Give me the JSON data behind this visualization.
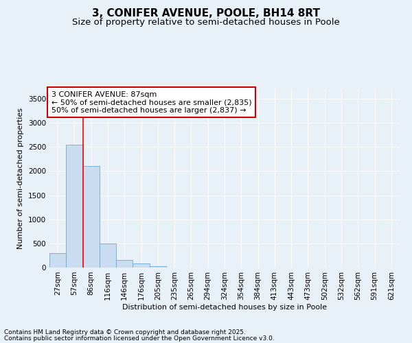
{
  "title": "3, CONIFER AVENUE, POOLE, BH14 8RT",
  "subtitle": "Size of property relative to semi-detached houses in Poole",
  "xlabel": "Distribution of semi-detached houses by size in Poole",
  "ylabel": "Number of semi-detached properties",
  "categories": [
    "27sqm",
    "57sqm",
    "86sqm",
    "116sqm",
    "146sqm",
    "176sqm",
    "205sqm",
    "235sqm",
    "265sqm",
    "294sqm",
    "324sqm",
    "354sqm",
    "384sqm",
    "413sqm",
    "443sqm",
    "473sqm",
    "502sqm",
    "532sqm",
    "562sqm",
    "591sqm",
    "621sqm"
  ],
  "values": [
    300,
    2550,
    2100,
    500,
    150,
    90,
    30,
    5,
    0,
    0,
    0,
    0,
    0,
    0,
    0,
    0,
    0,
    0,
    0,
    0,
    0
  ],
  "bar_color": "#c9dcf0",
  "bar_edge_color": "#6aaad4",
  "ylim": [
    0,
    3700
  ],
  "yticks": [
    0,
    500,
    1000,
    1500,
    2000,
    2500,
    3000,
    3500
  ],
  "vline_x": 2,
  "vline_color": "red",
  "annotation_text": "3 CONIFER AVENUE: 87sqm\n← 50% of semi-detached houses are smaller (2,835)\n50% of semi-detached houses are larger (2,837) →",
  "annotation_box_color": "white",
  "annotation_box_edge_color": "#cc0000",
  "bg_color": "#e8f0f8",
  "plot_bg_color": "#e8f0f8",
  "footer_line1": "Contains HM Land Registry data © Crown copyright and database right 2025.",
  "footer_line2": "Contains public sector information licensed under the Open Government Licence v3.0.",
  "title_fontsize": 11,
  "subtitle_fontsize": 9.5,
  "axis_label_fontsize": 8,
  "tick_fontsize": 7.5,
  "annotation_fontsize": 8,
  "footer_fontsize": 6.5
}
